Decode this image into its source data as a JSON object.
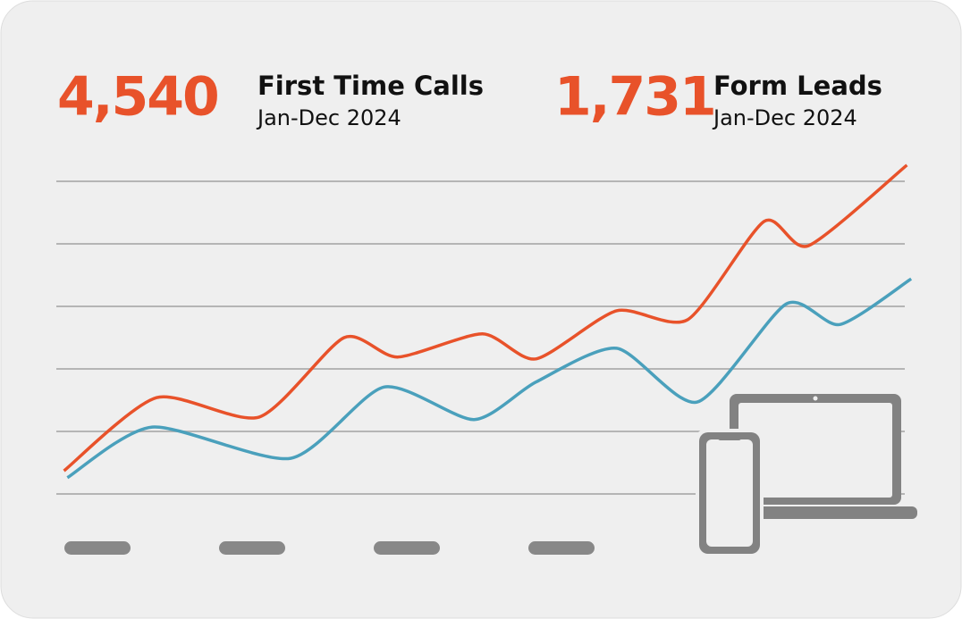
{
  "kpis": [
    {
      "value": "4,540",
      "label": "First Time Calls",
      "period": "Jan-Dec 2024"
    },
    {
      "value": "1,731",
      "label": "Form Leads",
      "period": "Jan-Dec 2024"
    }
  ],
  "chart_data": {
    "type": "line",
    "xlim": [
      0,
      101
    ],
    "ylim": [
      0,
      5.3
    ],
    "yticks": [
      0,
      1,
      2,
      3,
      4,
      5
    ],
    "grid": true,
    "series": [
      {
        "color": "#e8522a",
        "x": [
          0.9,
          11.8,
          23.9,
          33.9,
          40.2,
          50.2,
          56.5,
          66,
          74.4,
          83.4,
          88.6,
          100.2
        ],
        "values": [
          0.37,
          1.54,
          1.23,
          2.5,
          2.19,
          2.56,
          2.16,
          2.93,
          2.79,
          4.36,
          3.97,
          5.26
        ]
      },
      {
        "color": "#4aa0bc",
        "x": [
          1.3,
          11.3,
          27.6,
          38.6,
          49.2,
          56.5,
          66,
          75.5,
          86,
          92.3,
          100.7
        ],
        "values": [
          0.26,
          1.07,
          0.57,
          1.71,
          1.19,
          1.79,
          2.33,
          1.47,
          3.04,
          2.71,
          3.44
        ]
      }
    ]
  }
}
